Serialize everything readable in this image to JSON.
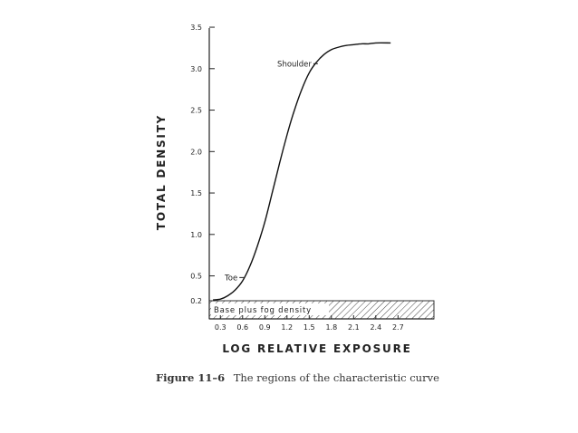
{
  "chart_data": {
    "type": "line",
    "xlabel": "LOG RELATIVE EXPOSURE",
    "ylabel": "TOTAL DENSITY",
    "xlim": [
      0.15,
      2.7
    ],
    "ylim": [
      0.2,
      3.5
    ],
    "x_ticks": [
      {
        "value": 0.3,
        "label": "0.3"
      },
      {
        "value": 0.6,
        "label": "0.6"
      },
      {
        "value": 0.9,
        "label": "0.9"
      },
      {
        "value": 1.2,
        "label": "1.2"
      },
      {
        "value": 1.5,
        "label": "1.5"
      },
      {
        "value": 1.8,
        "label": "1.8"
      },
      {
        "value": 2.1,
        "label": "2.1"
      },
      {
        "value": 2.4,
        "label": "2.4"
      },
      {
        "value": 2.7,
        "label": "2.7"
      }
    ],
    "y_ticks": [
      {
        "value": 0.2,
        "label": "0.2"
      },
      {
        "value": 0.5,
        "label": "0.5"
      },
      {
        "value": 1.0,
        "label": "1.0"
      },
      {
        "value": 1.5,
        "label": "1.5"
      },
      {
        "value": 2.0,
        "label": "2.0"
      },
      {
        "value": 2.5,
        "label": "2.5"
      },
      {
        "value": 3.0,
        "label": "3.0"
      },
      {
        "value": 3.5,
        "label": "3.5"
      }
    ],
    "series": [
      {
        "x": [
          0.2,
          0.3,
          0.4,
          0.5,
          0.6,
          0.7,
          0.8,
          0.9,
          1.0,
          1.1,
          1.2,
          1.3,
          1.4,
          1.5,
          1.6,
          1.7,
          1.8,
          1.9,
          2.0,
          2.1,
          2.2,
          2.3,
          2.4,
          2.6
        ],
        "y": [
          0.21,
          0.22,
          0.26,
          0.33,
          0.44,
          0.62,
          0.86,
          1.15,
          1.5,
          1.86,
          2.2,
          2.5,
          2.75,
          2.95,
          3.08,
          3.17,
          3.23,
          3.26,
          3.28,
          3.29,
          3.3,
          3.3,
          3.31,
          3.31
        ]
      }
    ],
    "band": {
      "label": "Base plus fog density",
      "y_from": 0.0,
      "y_to": 0.2
    },
    "annotations": [
      {
        "text": "Shoulder",
        "x": 1.63,
        "y": 3.06
      },
      {
        "text": "Toe",
        "x": 0.63,
        "y": 0.48
      }
    ],
    "grid": false
  },
  "caption": {
    "label": "Figure 11–6",
    "text": "The regions of the characteristic curve"
  }
}
